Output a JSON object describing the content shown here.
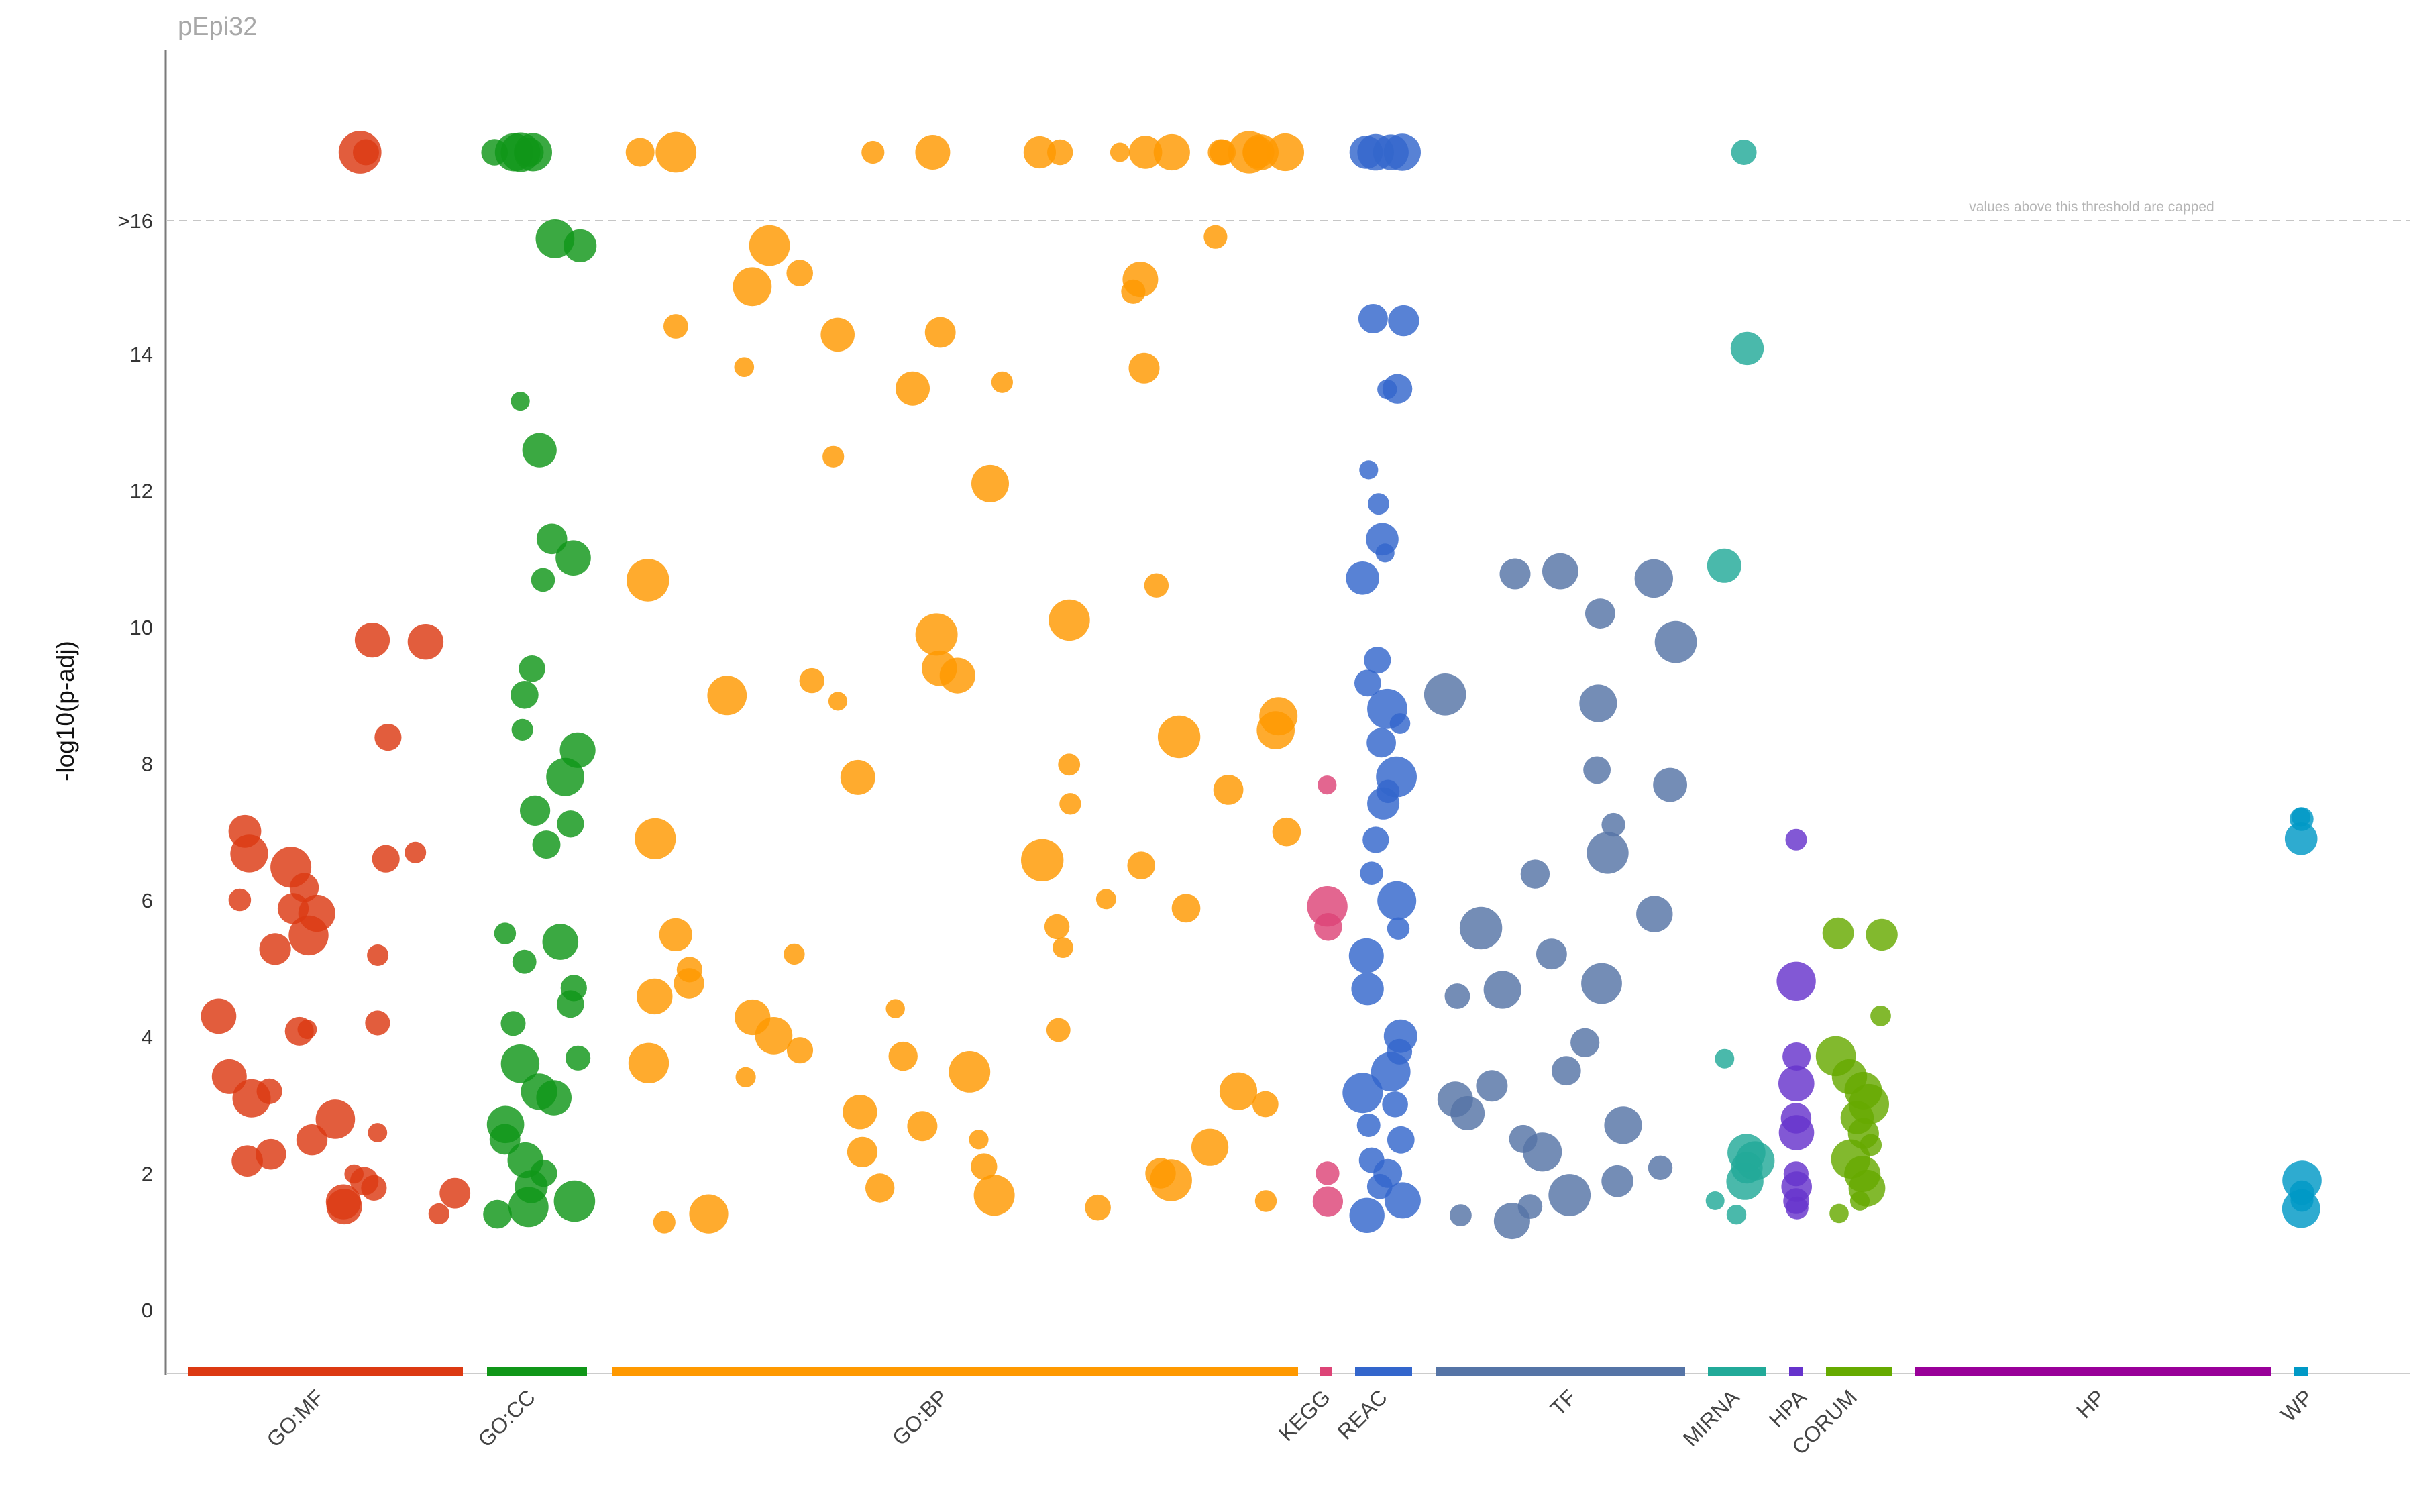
{
  "chart_data": {
    "type": "scatter",
    "title": "pEpi32",
    "ylabel": "-log10(p-adj)",
    "xlabel": "",
    "ylim": [
      -1,
      18
    ],
    "yticks": [
      0,
      2,
      4,
      6,
      8,
      10,
      12,
      14
    ],
    "cap_label": ">16",
    "cap_threshold": 16,
    "cap_annotation": "values above this threshold are capped",
    "grid": false,
    "legend": "none",
    "sources": [
      {
        "name": "GO:MF",
        "color": "#dc3912",
        "points": [
          17,
          17,
          9.8,
          9.8,
          8.4,
          7.0,
          6.7,
          6.7,
          6.6,
          6.5,
          6.2,
          6.0,
          5.9,
          5.8,
          5.5,
          5.3,
          5.2,
          4.3,
          4.2,
          4.1,
          4.1,
          3.4,
          3.2,
          3.1,
          2.8,
          2.6,
          2.5,
          2.3,
          2.2,
          2.0,
          1.9,
          1.8,
          1.7,
          1.6,
          1.5,
          1.4
        ]
      },
      {
        "name": "GO:CC",
        "color": "#109618",
        "points": [
          17,
          17,
          17,
          17,
          17,
          15.7,
          15.6,
          13.3,
          12.6,
          11.3,
          11.0,
          10.7,
          9.4,
          9.0,
          8.5,
          8.2,
          7.8,
          7.3,
          7.1,
          6.8,
          5.5,
          5.4,
          5.1,
          4.7,
          4.5,
          4.2,
          3.7,
          3.6,
          3.2,
          3.1,
          2.7,
          2.5,
          2.2,
          2.0,
          1.8,
          1.6,
          1.5,
          1.4
        ]
      },
      {
        "name": "GO:BP",
        "color": "#ff9900",
        "points": [
          17,
          17,
          17,
          17,
          17,
          17,
          17,
          17,
          17,
          17,
          17,
          17,
          17,
          17,
          17,
          15.7,
          15.6,
          15.2,
          15.1,
          15.0,
          14.9,
          14.4,
          14.3,
          14.3,
          13.8,
          13.8,
          13.6,
          13.5,
          12.5,
          12.1,
          10.7,
          10.6,
          10.1,
          9.9,
          9.4,
          9.3,
          9.2,
          9.0,
          8.9,
          8.7,
          8.5,
          8.4,
          8.0,
          7.8,
          7.6,
          7.4,
          7.0,
          6.9,
          6.6,
          6.5,
          6.0,
          5.9,
          5.6,
          5.5,
          5.3,
          5.2,
          5.0,
          4.8,
          4.6,
          4.4,
          4.3,
          4.1,
          4.0,
          3.8,
          3.7,
          3.6,
          3.5,
          3.4,
          3.2,
          3.0,
          2.9,
          2.7,
          2.5,
          2.4,
          2.3,
          2.1,
          2.0,
          1.9,
          1.8,
          1.7,
          1.6,
          1.5,
          1.4,
          1.3
        ]
      },
      {
        "name": "KEGG",
        "color": "#dd4477",
        "points": [
          7.7,
          5.9,
          5.6,
          2.0,
          1.6
        ]
      },
      {
        "name": "REAC",
        "color": "#3366cc",
        "points": [
          17,
          17,
          17,
          17,
          14.5,
          14.5,
          13.5,
          13.5,
          12.3,
          11.8,
          11.3,
          11.1,
          10.7,
          9.5,
          9.2,
          8.8,
          8.6,
          8.3,
          7.8,
          7.6,
          7.4,
          6.9,
          6.4,
          6.0,
          5.6,
          5.2,
          4.7,
          4.0,
          3.8,
          3.5,
          3.2,
          3.0,
          2.7,
          2.5,
          2.2,
          2.0,
          1.8,
          1.6,
          1.4
        ]
      },
      {
        "name": "TF",
        "color": "#5574a6",
        "points": [
          10.8,
          10.8,
          10.7,
          10.2,
          9.8,
          9.0,
          8.9,
          7.9,
          7.7,
          7.1,
          6.7,
          6.4,
          5.8,
          5.6,
          5.2,
          4.8,
          4.7,
          4.6,
          3.9,
          3.5,
          3.3,
          3.1,
          2.9,
          2.7,
          2.5,
          2.3,
          2.1,
          1.9,
          1.7,
          1.5,
          1.4,
          1.3
        ]
      },
      {
        "name": "MIRNA",
        "color": "#22aa99",
        "points": [
          17,
          14.1,
          10.9,
          3.7,
          2.3,
          2.2,
          2.1,
          1.9,
          1.6,
          1.4
        ]
      },
      {
        "name": "HPA",
        "color": "#6633cc",
        "points": [
          6.9,
          4.8,
          3.7,
          3.3,
          2.8,
          2.6,
          2.0,
          1.8,
          1.6,
          1.5
        ]
      },
      {
        "name": "CORUM",
        "color": "#66aa00",
        "points": [
          5.5,
          5.5,
          4.3,
          3.7,
          3.4,
          3.2,
          3.0,
          2.8,
          2.6,
          2.4,
          2.2,
          2.0,
          1.8,
          1.6,
          1.4
        ]
      },
      {
        "name": "HP",
        "color": "#990099",
        "points": []
      },
      {
        "name": "WP",
        "color": "#0099c6",
        "points": [
          7.2,
          7.2,
          6.9,
          1.9,
          1.7,
          1.6,
          1.5
        ]
      }
    ]
  }
}
